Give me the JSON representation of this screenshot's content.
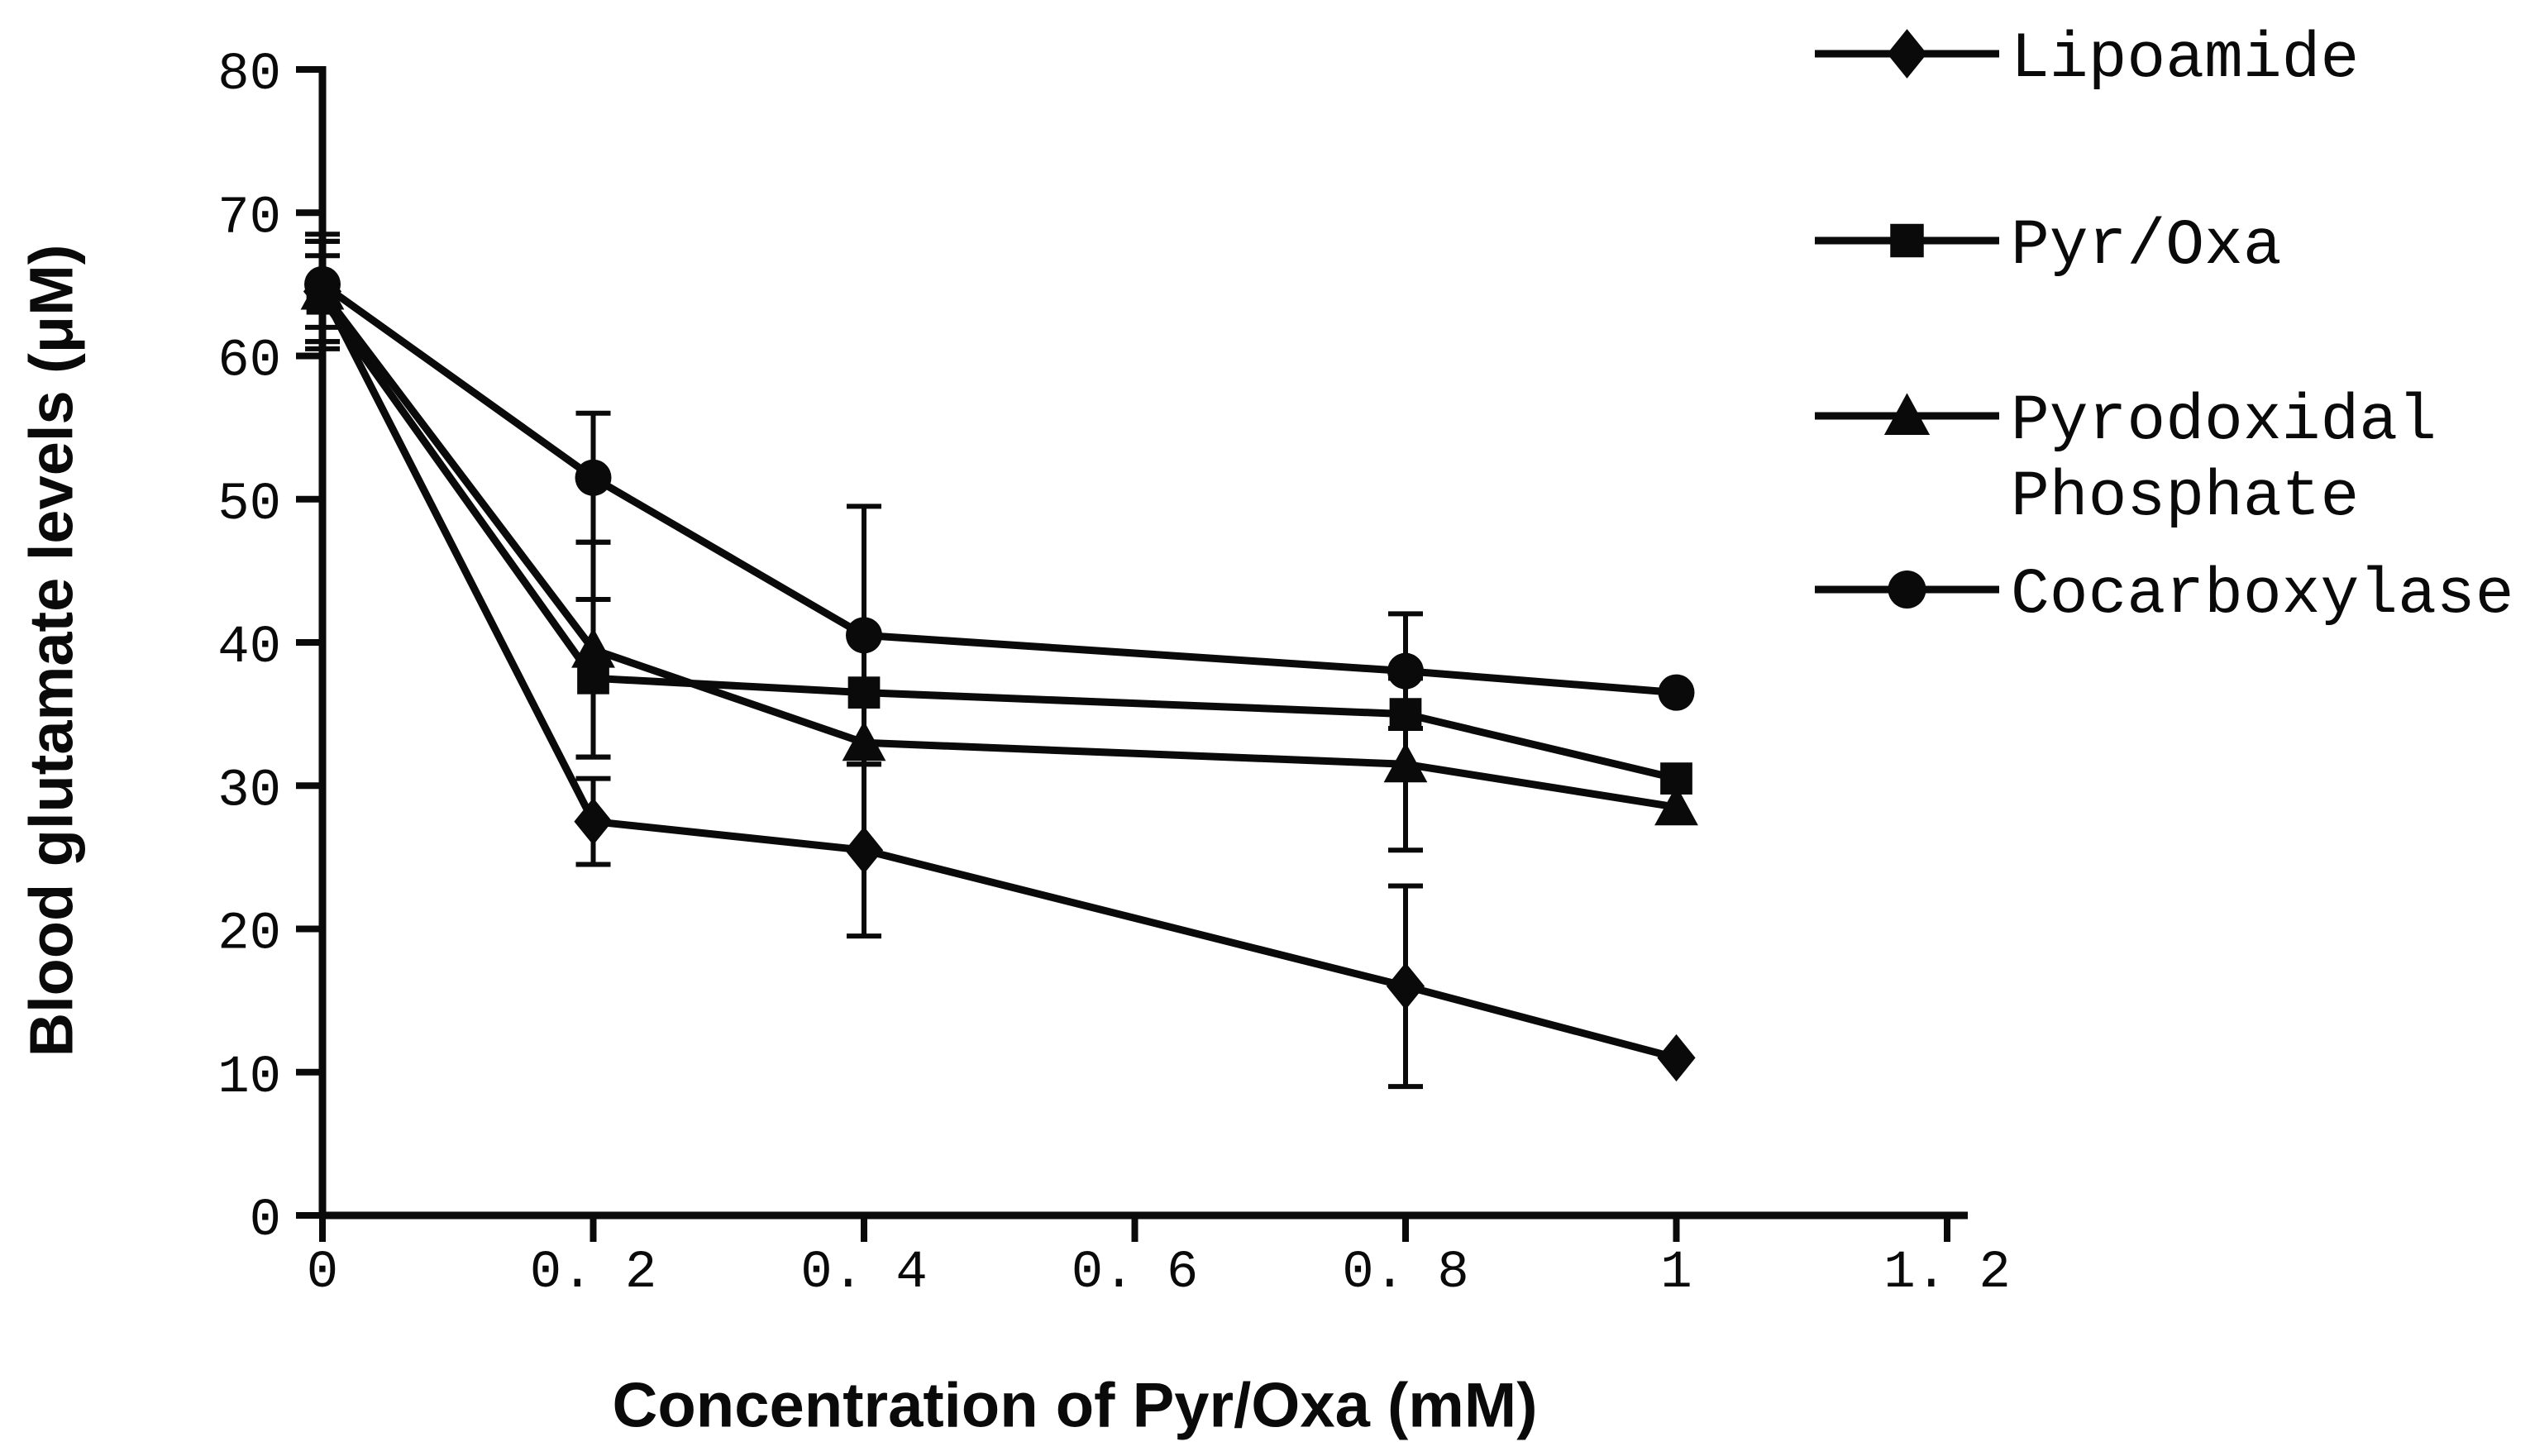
{
  "chart_data": {
    "type": "line",
    "title": "",
    "xlabel": "Concentration of Pyr/Oxa (mM)",
    "ylabel": "Blood glutamate levels (μM)",
    "xlim": [
      0,
      1.2
    ],
    "ylim": [
      0,
      80
    ],
    "grid": false,
    "legend_position": "top-right",
    "ink_color": "#0a0a0a",
    "background_color": "#ffffff",
    "x_ticks": [
      0,
      0.2,
      0.4,
      0.6,
      0.8,
      1,
      1.2
    ],
    "x_tick_labels": [
      "0",
      "0. 2",
      "0. 4",
      "0. 6",
      "0. 8",
      "1",
      "1. 2"
    ],
    "y_ticks": [
      0,
      10,
      20,
      30,
      40,
      50,
      60,
      70,
      80
    ],
    "y_tick_labels": [
      "0",
      "10",
      "20",
      "30",
      "40",
      "50",
      "60",
      "70",
      "80"
    ],
    "x": [
      0,
      0.2,
      0.4,
      0.8,
      1
    ],
    "series": [
      {
        "name": "Lipoamide",
        "marker": "diamond",
        "values": [
          64.5,
          27.5,
          25.5,
          16,
          11
        ],
        "errors": [
          3.5,
          3,
          6,
          7,
          0
        ]
      },
      {
        "name": "Pyr/Oxa",
        "marker": "square",
        "values": [
          64,
          37.5,
          36.5,
          35,
          30.5
        ],
        "errors": [
          3,
          5.5,
          0,
          0,
          0
        ]
      },
      {
        "name": "Pyrodoxidal Phosphate",
        "marker": "triangle",
        "values": [
          64.5,
          39.5,
          33,
          31.5,
          28.5
        ],
        "errors": [
          4,
          7.5,
          0,
          6,
          0
        ]
      },
      {
        "name": "Cocarboxylase",
        "marker": "circle",
        "values": [
          65,
          51.5,
          40.5,
          38,
          36.5
        ],
        "errors": [
          3,
          4.5,
          9,
          4,
          0
        ]
      }
    ],
    "legend": [
      {
        "label": "Lipoamide",
        "marker": "diamond"
      },
      {
        "label": "Pyr/Oxa",
        "marker": "square"
      },
      {
        "label": "Pyrodoxidal\nPhosphate",
        "marker": "triangle"
      },
      {
        "label": "Cocarboxylase",
        "marker": "circle"
      }
    ]
  }
}
